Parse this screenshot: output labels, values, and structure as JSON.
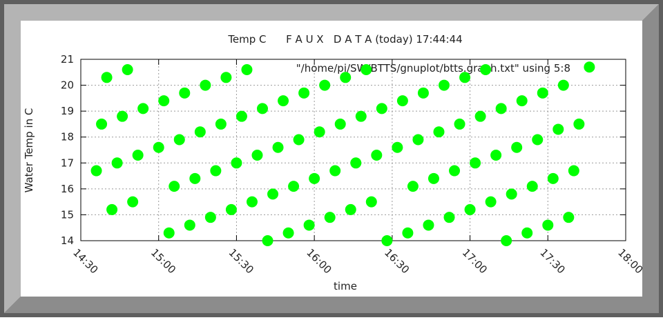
{
  "chart_data": {
    "type": "scatter",
    "title": "Temp C      F A U X   D A T A (today) 17:44:44",
    "xlabel": "time",
    "ylabel": "Water Temp in C",
    "series": [
      {
        "name": "\"/home/pi/SW/BTTS/gnuplot/btts.graph.txt\" using 5:8",
        "color": "#00ff00",
        "x": [
          "14:36",
          "14:38",
          "14:40",
          "14:42",
          "14:44",
          "14:46",
          "14:48",
          "14:50",
          "14:52",
          "14:54",
          "15:00",
          "15:02",
          "15:04",
          "15:06",
          "15:08",
          "15:10",
          "15:12",
          "15:14",
          "15:16",
          "15:18",
          "15:20",
          "15:22",
          "15:24",
          "15:26",
          "15:28",
          "15:30",
          "15:32",
          "15:34",
          "15:36",
          "15:38",
          "15:40",
          "15:42",
          "15:44",
          "15:46",
          "15:48",
          "15:50",
          "15:52",
          "15:54",
          "15:56",
          "15:58",
          "16:00",
          "16:02",
          "16:04",
          "16:06",
          "16:08",
          "16:10",
          "16:12",
          "16:14",
          "16:16",
          "16:18",
          "16:20",
          "16:22",
          "16:24",
          "16:26",
          "16:28",
          "16:32",
          "16:34",
          "16:36",
          "16:38",
          "16:40",
          "16:42",
          "16:44",
          "16:46",
          "16:48",
          "16:50",
          "16:52",
          "16:54",
          "16:56",
          "16:58",
          "17:00",
          "17:02",
          "17:04",
          "17:06",
          "17:08",
          "17:10",
          "17:12",
          "17:14",
          "17:16",
          "17:18",
          "17:20",
          "17:22",
          "17:24",
          "17:26",
          "17:28",
          "17:30",
          "17:32",
          "17:34",
          "17:36",
          "17:38",
          "17:40",
          "17:42",
          "17:46"
        ],
        "values": [
          16.7,
          18.5,
          20.3,
          15.2,
          17.0,
          18.8,
          20.6,
          15.5,
          17.3,
          19.1,
          17.6,
          19.4,
          14.3,
          16.1,
          17.9,
          19.7,
          14.6,
          16.4,
          18.2,
          20.0,
          14.9,
          16.7,
          18.5,
          20.3,
          15.2,
          17.0,
          18.8,
          20.6,
          15.5,
          17.3,
          19.1,
          14.0,
          15.8,
          17.6,
          19.4,
          14.3,
          16.1,
          17.9,
          19.7,
          14.6,
          16.4,
          18.2,
          20.0,
          14.9,
          16.7,
          18.5,
          20.3,
          15.2,
          17.0,
          18.8,
          20.6,
          15.5,
          17.3,
          19.1,
          14.0,
          17.6,
          19.4,
          14.3,
          16.1,
          17.9,
          19.7,
          14.6,
          16.4,
          18.2,
          20.0,
          14.9,
          16.7,
          18.5,
          20.3,
          15.2,
          17.0,
          18.8,
          20.6,
          15.5,
          17.3,
          19.1,
          14.0,
          15.8,
          17.6,
          19.4,
          14.3,
          16.1,
          17.9,
          19.7,
          14.6,
          16.4,
          18.3,
          20.0,
          14.9,
          16.7,
          18.5,
          20.7
        ]
      }
    ],
    "xlim": [
      "14:30",
      "18:00"
    ],
    "xticks": [
      "14:30",
      "15:00",
      "15:30",
      "16:00",
      "16:30",
      "17:00",
      "17:30",
      "18:00"
    ],
    "ylim": [
      14,
      21
    ],
    "yticks": [
      14,
      15,
      16,
      17,
      18,
      19,
      20,
      21
    ],
    "grid": true
  }
}
